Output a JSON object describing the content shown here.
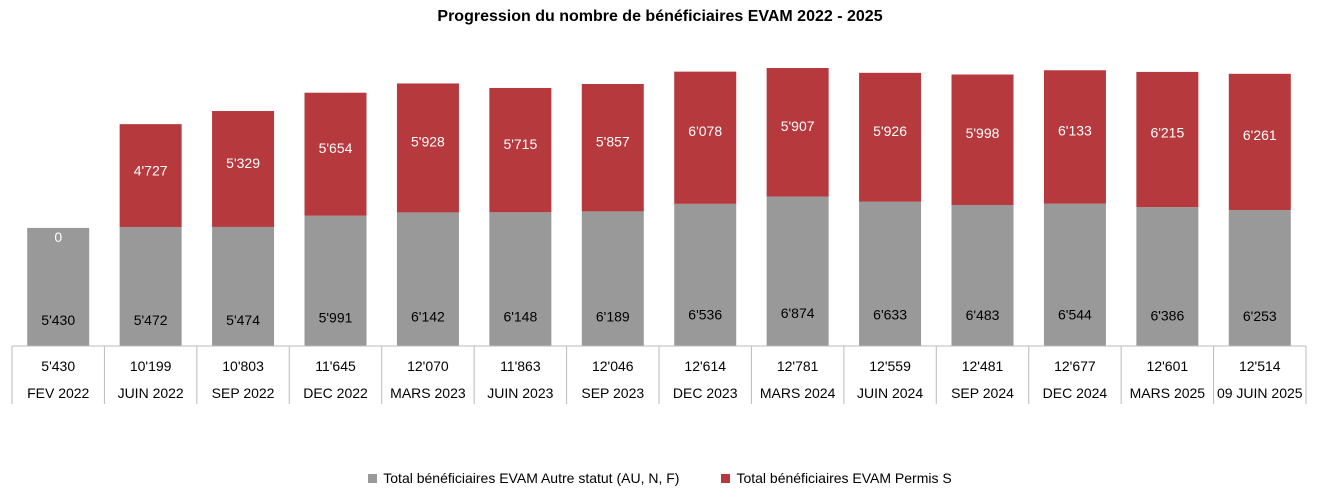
{
  "chart_data": {
    "type": "bar",
    "stacked": true,
    "title": "Progression du nombre de bénéficiaires EVAM 2022 - 2025",
    "categories": [
      "FEV 2022",
      "JUIN 2022",
      "SEP 2022",
      "DEC 2022",
      "MARS 2023",
      "JUIN 2023",
      "SEP 2023",
      "DEC 2023",
      "MARS 2024",
      "JUIN 2024",
      "SEP 2024",
      "DEC 2024",
      "MARS 2025",
      "09 JUIN 2025"
    ],
    "totals": [
      "5'430",
      "10'199",
      "10'803",
      "11'645",
      "12'070",
      "11'863",
      "12'046",
      "12'614",
      "12'781",
      "12'559",
      "12'481",
      "12'677",
      "12'601",
      "12'514"
    ],
    "series": [
      {
        "name": "Total bénéficiaires EVAM Autre statut (AU, N, F)",
        "color": "#999999",
        "label_color": "#000000",
        "values": [
          5430,
          5472,
          5474,
          5991,
          6142,
          6148,
          6189,
          6536,
          6874,
          6633,
          6483,
          6544,
          6386,
          6253
        ],
        "labels": [
          "5'430",
          "5'472",
          "5'474",
          "5'991",
          "6'142",
          "6'148",
          "6'189",
          "6'536",
          "6'874",
          "6'633",
          "6'483",
          "6'544",
          "6'386",
          "6'253"
        ]
      },
      {
        "name": "Total bénéficiaires EVAM Permis S",
        "color": "#b5393d",
        "label_color": "#ffffff",
        "values": [
          0,
          4727,
          5329,
          5654,
          5928,
          5715,
          5857,
          6078,
          5907,
          5926,
          5998,
          6133,
          6215,
          6261
        ],
        "labels": [
          "0",
          "4'727",
          "5'329",
          "5'654",
          "5'928",
          "5'715",
          "5'857",
          "6'078",
          "5'907",
          "5'926",
          "5'998",
          "6'133",
          "6'215",
          "6'261"
        ]
      }
    ],
    "ylim": [
      0,
      12781
    ],
    "grid": false,
    "legend": "bottom-center"
  }
}
